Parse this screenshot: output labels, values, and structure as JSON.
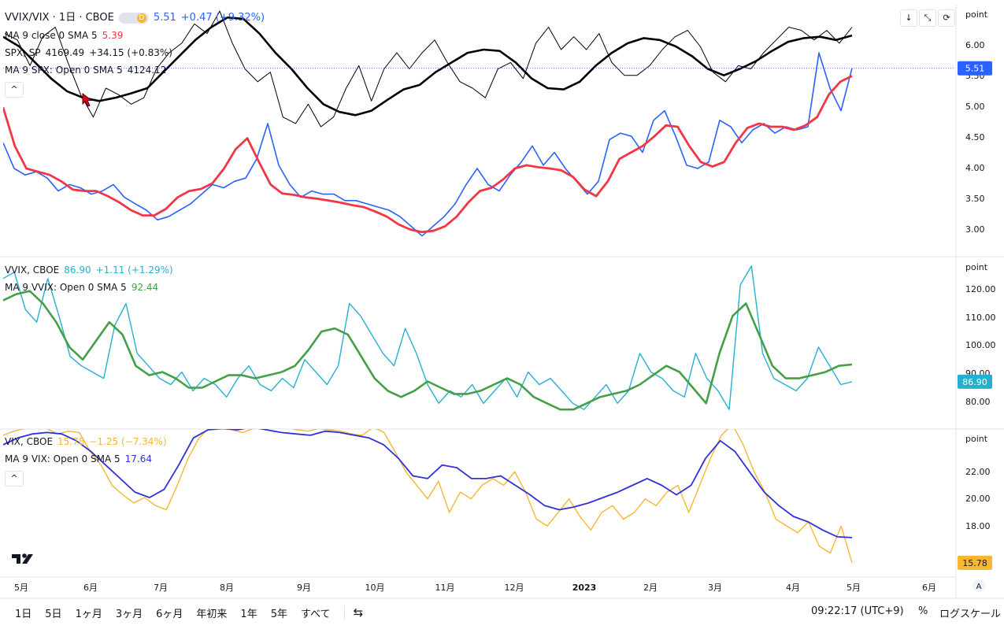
{
  "colors": {
    "ratio": "#2962ff",
    "ratio_ma": "#f23645",
    "spx": "#000000",
    "spx_ma": "#000000",
    "vvix": "#26b0d0",
    "vvix_ma": "#43a047",
    "vix": "#f7b731",
    "vix_ma": "#3030d8",
    "grid": "#e0e3eb",
    "axis_text": "#131722"
  },
  "header": {
    "symbol_main": "VVIX/VIX · 1日 · CBOE",
    "badge_letter": "D",
    "price_main": "5.51",
    "change_main": "+0.47 (+9.32%)"
  },
  "pane1": {
    "ma_ratio_label": "MA 9 close 0 SMA 5",
    "ma_ratio_value": "5.39",
    "spx_label": "SPX, SP",
    "spx_value": "4169.49",
    "spx_change": "+34.15 (+0.83%)",
    "ma_spx_label": "MA 9 SPX: Open 0 SMA 5",
    "ma_spx_value": "4124.12"
  },
  "pane2": {
    "vvix_label": "VVIX, CBOE",
    "vvix_value": "86.90",
    "vvix_change": "+1.11 (+1.29%)",
    "ma_vvix_label": "MA 9 VVIX: Open 0 SMA 5",
    "ma_vvix_value": "92.44"
  },
  "pane3": {
    "vix_label": "VIX, CBOE",
    "vix_value": "15.78",
    "vix_change": "−1.25 (−7.34%)",
    "ma_vix_label": "MA 9 VIX: Open 0 SMA 5",
    "ma_vix_value": "17.64"
  },
  "collapse_glyph": "^",
  "top_buttons": [
    "↓",
    "⤡",
    "⟳"
  ],
  "scale_unit": "point",
  "axis_badge_A": "A",
  "bottom": {
    "ranges": [
      "1日",
      "5日",
      "1ヶ月",
      "3ヶ月",
      "6ヶ月",
      "年初来",
      "1年",
      "5年",
      "すべて"
    ],
    "compare_icon": "⇆",
    "clock": "09:22:17 (UTC+9)",
    "percent": "%",
    "log": "ログスケール"
  },
  "chart_data": [
    {
      "type": "line",
      "title": "VVIX/VIX · 1日 · CBOE",
      "x_ticks": [
        "5月",
        "6月",
        "7月",
        "8月",
        "9月",
        "10月",
        "11月",
        "12月",
        "2023",
        "2月",
        "3月",
        "4月",
        "5月",
        "6月"
      ],
      "y_ticks": [
        "3.00",
        "3.50",
        "4.00",
        "4.50",
        "5.00",
        "5.50",
        "6.00"
      ],
      "ylim": [
        2.7,
        6.45
      ],
      "last_value": "5.51",
      "series": [
        {
          "name": "VVIX/VIX",
          "color": "#2962ff",
          "width": 1.6,
          "values": [
            4.35,
            3.95,
            3.85,
            3.9,
            3.8,
            3.6,
            3.7,
            3.65,
            3.55,
            3.6,
            3.7,
            3.5,
            3.4,
            3.3,
            3.15,
            3.2,
            3.3,
            3.4,
            3.55,
            3.7,
            3.65,
            3.75,
            3.8,
            4.1,
            4.65,
            4.0,
            3.7,
            3.5,
            3.6,
            3.55,
            3.55,
            3.45,
            3.45,
            3.4,
            3.35,
            3.3,
            3.2,
            3.05,
            2.9,
            3.05,
            3.2,
            3.4,
            3.7,
            3.95,
            3.7,
            3.6,
            3.85,
            4.05,
            4.3,
            4.0,
            4.2,
            3.95,
            3.75,
            3.55,
            3.75,
            4.4,
            4.5,
            4.45,
            4.2,
            4.7,
            4.85,
            4.45,
            4.0,
            3.95,
            4.05,
            4.7,
            4.6,
            4.35,
            4.55,
            4.65,
            4.5,
            4.6,
            4.55,
            4.6,
            5.75,
            5.2,
            4.85,
            5.51
          ]
        },
        {
          "name": "MA 9 close 0 SMA 5",
          "color": "#f23645",
          "width": 2.8,
          "values": [
            4.9,
            4.3,
            3.95,
            3.9,
            3.85,
            3.75,
            3.62,
            3.6,
            3.6,
            3.52,
            3.42,
            3.3,
            3.22,
            3.22,
            3.32,
            3.5,
            3.6,
            3.63,
            3.72,
            3.95,
            4.25,
            4.42,
            4.05,
            3.7,
            3.56,
            3.54,
            3.5,
            3.48,
            3.45,
            3.42,
            3.38,
            3.35,
            3.28,
            3.2,
            3.08,
            3.0,
            2.96,
            2.98,
            3.05,
            3.2,
            3.42,
            3.6,
            3.65,
            3.78,
            3.95,
            4.0,
            3.97,
            3.95,
            3.92,
            3.82,
            3.62,
            3.52,
            3.75,
            4.1,
            4.2,
            4.3,
            4.45,
            4.62,
            4.6,
            4.3,
            4.05,
            3.98,
            4.05,
            4.35,
            4.58,
            4.65,
            4.6,
            4.6,
            4.55,
            4.62,
            4.75,
            5.1,
            5.3,
            5.39
          ]
        },
        {
          "name": "SPX",
          "color": "#000000",
          "width": 1.0,
          "values": [
            6.05,
            5.95,
            5.55,
            6.0,
            6.15,
            5.6,
            5.1,
            4.75,
            5.2,
            5.1,
            4.95,
            5.05,
            5.5,
            5.75,
            5.9,
            6.2,
            6.05,
            6.4,
            5.9,
            5.5,
            5.3,
            5.45,
            4.75,
            4.65,
            4.95,
            4.6,
            4.75,
            5.2,
            5.55,
            5.0,
            5.5,
            5.75,
            5.5,
            5.75,
            5.95,
            5.6,
            5.3,
            5.2,
            5.05,
            5.5,
            5.6,
            5.35,
            5.9,
            6.15,
            5.8,
            6.0,
            5.8,
            6.05,
            5.6,
            5.4,
            5.4,
            5.55,
            5.8,
            6.0,
            6.1,
            5.85,
            5.45,
            5.3,
            5.55,
            5.5,
            5.75,
            5.95,
            6.15,
            6.1,
            5.95,
            6.1,
            5.9,
            6.15
          ]
        },
        {
          "name": "MA 9 SPX: Open 0 SMA 5",
          "color": "#000000",
          "width": 2.6,
          "values": [
            6.0,
            5.85,
            5.6,
            5.35,
            5.15,
            5.05,
            5.0,
            5.05,
            5.12,
            5.2,
            5.45,
            5.7,
            5.95,
            6.15,
            6.3,
            6.28,
            6.05,
            5.75,
            5.5,
            5.2,
            4.95,
            4.83,
            4.78,
            4.85,
            5.02,
            5.18,
            5.25,
            5.45,
            5.6,
            5.75,
            5.8,
            5.78,
            5.6,
            5.35,
            5.2,
            5.18,
            5.3,
            5.55,
            5.75,
            5.9,
            5.98,
            5.95,
            5.85,
            5.7,
            5.5,
            5.4,
            5.5,
            5.62,
            5.78,
            5.92,
            5.98,
            6.0,
            5.95,
            6.02
          ]
        }
      ]
    },
    {
      "type": "line",
      "title": "VVIX, CBOE",
      "y_ticks": [
        "80.00",
        "90.00",
        "100.00",
        "110.00",
        "120.00"
      ],
      "ylim": [
        73,
        126
      ],
      "last_value": "86.90",
      "series": [
        {
          "name": "VVIX",
          "color": "#26b0d0",
          "width": 1.4,
          "values": [
            120,
            122,
            110,
            106,
            120,
            108,
            95,
            92,
            90,
            88,
            105,
            112,
            96,
            92,
            88,
            86,
            90,
            84,
            88,
            86,
            82,
            88,
            92,
            86,
            84,
            88,
            85,
            94,
            90,
            86,
            92,
            112,
            108,
            102,
            96,
            92,
            104,
            96,
            86,
            80,
            84,
            82,
            86,
            80,
            84,
            88,
            82,
            90,
            86,
            88,
            84,
            80,
            78,
            82,
            86,
            80,
            84,
            96,
            90,
            88,
            84,
            82,
            96,
            88,
            84,
            78,
            118,
            124,
            96,
            88,
            86,
            84,
            88,
            98,
            92,
            86,
            86.9
          ]
        },
        {
          "name": "MA 9 VVIX: Open 0 SMA 5",
          "color": "#43a047",
          "width": 2.6,
          "values": [
            113,
            115,
            116,
            112,
            106,
            98,
            94,
            100,
            106,
            102,
            92,
            89,
            90,
            88,
            85,
            85,
            87,
            89,
            89,
            88,
            89,
            90,
            92,
            97,
            103,
            104,
            102,
            95,
            88,
            84,
            82,
            84,
            87,
            85,
            83,
            83,
            84,
            86,
            88,
            86,
            82,
            80,
            78,
            78,
            80,
            82,
            83,
            84,
            86,
            89,
            92,
            90,
            85,
            80,
            96,
            108,
            112,
            102,
            92,
            88,
            88,
            89,
            90,
            92,
            92.44
          ]
        }
      ]
    },
    {
      "type": "line",
      "title": "VIX, CBOE",
      "y_ticks": [
        "18.00",
        "20.00",
        "22.00"
      ],
      "ylim": [
        14.9,
        25.6
      ],
      "last_value": "15.78",
      "series": [
        {
          "name": "VIX",
          "color": "#f7b731",
          "width": 1.4,
          "values": [
            25.2,
            25.5,
            25.7,
            25.8,
            25.7,
            25.3,
            25.5,
            25.4,
            24.0,
            23.0,
            21.5,
            20.8,
            20.2,
            20.6,
            20.0,
            19.7,
            21.5,
            23.5,
            25.0,
            25.8,
            25.8,
            25.6,
            25.4,
            25.7,
            25.8,
            26.0,
            25.8,
            25.6,
            25.5,
            25.7,
            25.6,
            25.5,
            25.3,
            25.2,
            25.8,
            25.4,
            24.0,
            22.5,
            21.5,
            20.5,
            21.8,
            19.5,
            21.0,
            20.5,
            21.5,
            22.0,
            21.5,
            22.5,
            21.0,
            19.0,
            18.5,
            19.5,
            20.5,
            19.2,
            18.2,
            19.5,
            20.0,
            19.0,
            19.5,
            20.5,
            20.0,
            21.0,
            21.5,
            19.5,
            21.5,
            23.5,
            25.2,
            26.0,
            24.5,
            22.5,
            21.0,
            19.0,
            18.5,
            18.0,
            18.8,
            17.0,
            16.5,
            18.5,
            15.78
          ]
        },
        {
          "name": "MA 9 VIX: Open 0 SMA 5",
          "color": "#3030d8",
          "width": 1.8,
          "values": [
            24.5,
            25.0,
            25.3,
            25.4,
            25.3,
            24.8,
            24.0,
            23.0,
            22.0,
            21.0,
            20.6,
            21.2,
            23.0,
            25.0,
            25.6,
            25.7,
            25.6,
            25.8,
            25.6,
            25.4,
            25.3,
            25.2,
            25.5,
            25.4,
            25.2,
            25.0,
            24.5,
            23.5,
            22.2,
            22.0,
            23.0,
            22.8,
            22.0,
            22.0,
            22.2,
            21.5,
            20.8,
            20.0,
            19.7,
            19.9,
            20.2,
            20.6,
            21.0,
            21.5,
            22.0,
            21.5,
            20.8,
            21.5,
            23.5,
            24.8,
            24.0,
            22.5,
            21.0,
            20.0,
            19.2,
            18.8,
            18.2,
            17.7,
            17.64
          ]
        }
      ]
    }
  ]
}
